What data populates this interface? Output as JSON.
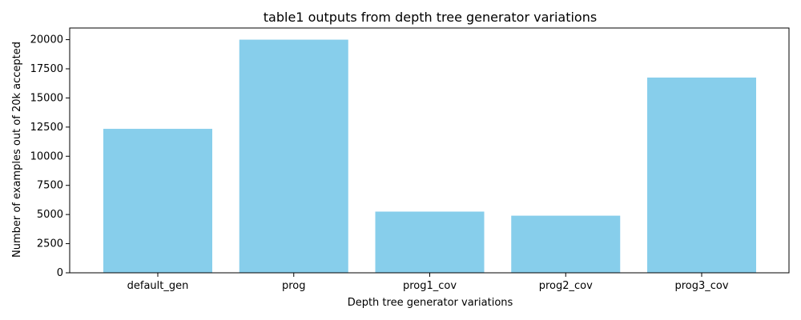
{
  "chart_data": {
    "type": "bar",
    "title": "table1 outputs from depth tree generator variations",
    "xlabel": "Depth tree generator variations",
    "ylabel": "Number of examples out of 20k accepted",
    "categories": [
      "default_gen",
      "prog",
      "prog1_cov",
      "prog2_cov",
      "prog3_cov"
    ],
    "values": [
      12350,
      20000,
      5250,
      4900,
      16750
    ],
    "ylim": [
      0,
      21000
    ],
    "yticks": [
      0,
      2500,
      5000,
      7500,
      10000,
      12500,
      15000,
      17500,
      20000
    ],
    "ytick_labels": [
      "0",
      "2500",
      "5000",
      "7500",
      "10000",
      "12500",
      "15000",
      "17500",
      "20000"
    ],
    "bar_color": "#87ceeb",
    "grid": false,
    "legend": "none"
  }
}
